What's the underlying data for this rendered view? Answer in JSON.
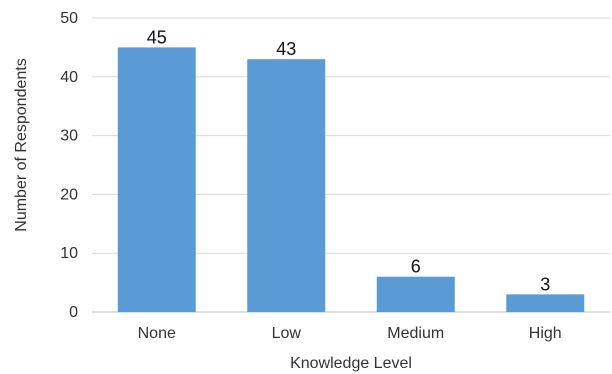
{
  "chart_data": {
    "type": "bar",
    "categories": [
      "None",
      "Low",
      "Medium",
      "High"
    ],
    "values": [
      45,
      43,
      6,
      3
    ],
    "data_labels": [
      "45",
      "43",
      "6",
      "3"
    ],
    "title": "",
    "xlabel": "Knowledge Level",
    "ylabel": "Number of Respondents",
    "ylim": [
      0,
      50
    ],
    "yticks": [
      "0",
      "10",
      "20",
      "30",
      "40",
      "50"
    ],
    "grid": true,
    "legend": "none",
    "bar_color": "#5b9bd5"
  }
}
